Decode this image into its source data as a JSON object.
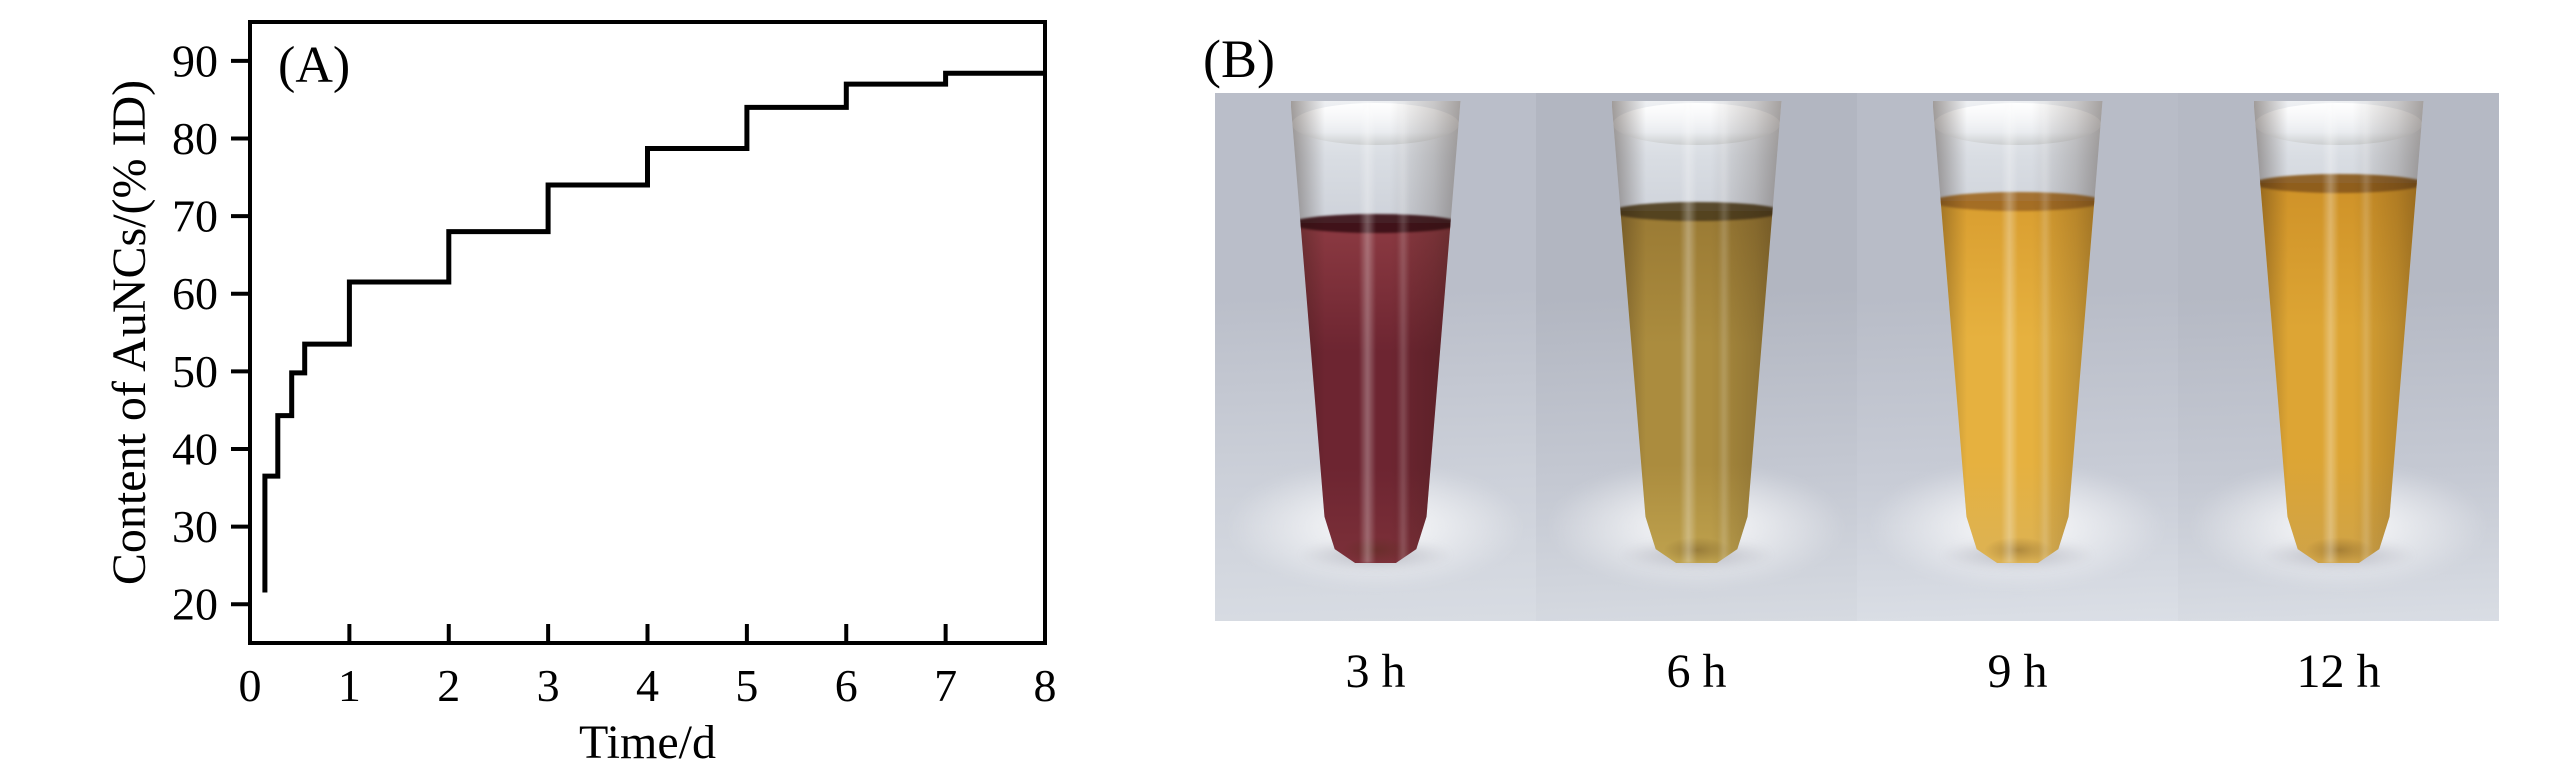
{
  "chart_data": {
    "type": "step-line",
    "panel_label": "(A)",
    "title": "",
    "xlabel": "Time/d",
    "ylabel": "Content of AuNCs/(% ID)",
    "xlim": [
      0,
      8
    ],
    "ylim": [
      15,
      95
    ],
    "xticks": [
      0,
      1,
      2,
      3,
      4,
      5,
      6,
      7,
      8
    ],
    "yticks": [
      20,
      30,
      40,
      50,
      60,
      70,
      80,
      90
    ],
    "grid": false,
    "legend": false,
    "line_color": "#000000",
    "axis_color": "#000000",
    "points": [
      [
        0.15,
        21.5
      ],
      [
        0.15,
        36.5
      ],
      [
        0.28,
        36.5
      ],
      [
        0.28,
        44.3
      ],
      [
        0.42,
        44.3
      ],
      [
        0.42,
        49.8
      ],
      [
        0.55,
        49.8
      ],
      [
        0.55,
        53.5
      ],
      [
        1.0,
        53.5
      ],
      [
        1.0,
        61.5
      ],
      [
        2.0,
        61.5
      ],
      [
        2.0,
        68.0
      ],
      [
        3.0,
        68.0
      ],
      [
        3.0,
        74.0
      ],
      [
        4.0,
        74.0
      ],
      [
        4.0,
        78.7
      ],
      [
        5.0,
        78.7
      ],
      [
        5.0,
        84.0
      ],
      [
        6.0,
        84.0
      ],
      [
        6.0,
        87.0
      ],
      [
        7.0,
        87.0
      ],
      [
        7.0,
        88.4
      ],
      [
        8.0,
        88.4
      ]
    ]
  },
  "panel_b": {
    "label": "(B)",
    "photos": [
      {
        "label": "3 h",
        "bg_top": "#babec9",
        "bg_mid": "#ccd0d9",
        "bg_bottom": "#d8dce3",
        "meniscus": "#3a1016",
        "liquid_top": "#8c3a42",
        "liquid_mid": "#6d2531",
        "liquid_bottom": "#7c3039",
        "fill_top_pct": 26.4
      },
      {
        "label": "6 h",
        "bg_top": "#b2b6c1",
        "bg_mid": "#c4c8d2",
        "bg_bottom": "#d6dae1",
        "meniscus": "#4f3e1e",
        "liquid_top": "#9a7a34",
        "liquid_mid": "#ab8c3e",
        "liquid_bottom": "#bfa24e",
        "fill_top_pct": 23.8
      },
      {
        "label": "9 h",
        "bg_top": "#b8bcc7",
        "bg_mid": "#c8ccd6",
        "bg_bottom": "#dbdfe6",
        "meniscus": "#a06a24",
        "liquid_top": "#d99e30",
        "liquid_mid": "#e6b13f",
        "liquid_bottom": "#dcb254",
        "fill_top_pct": 21.6
      },
      {
        "label": "12 h",
        "bg_top": "#b5b9c4",
        "bg_mid": "#c5c9d3",
        "bg_bottom": "#d9dde4",
        "meniscus": "#8a5a1c",
        "liquid_top": "#cf9228",
        "liquid_mid": "#dda534",
        "liquid_bottom": "#cfa348",
        "fill_top_pct": 17.7
      }
    ]
  }
}
